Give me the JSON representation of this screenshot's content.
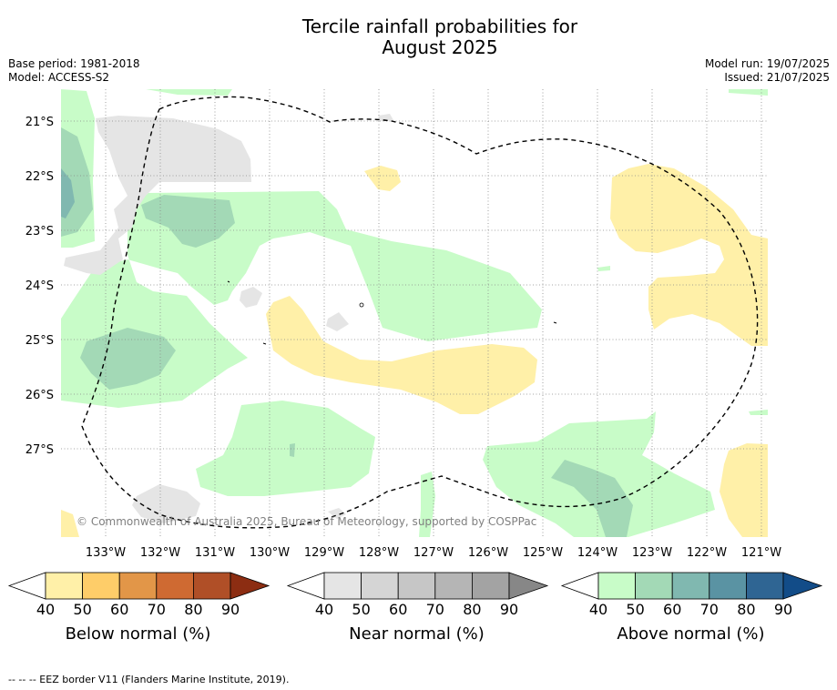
{
  "header": {
    "title_line1": "Tercile rainfall probabilities for",
    "title_line2": "August 2025",
    "base_period": "Base period: 1981-2018",
    "model": "Model: ACCESS-S2",
    "model_run": "Model run: 19/07/2025",
    "issued": "Issued: 21/07/2025"
  },
  "map": {
    "lat_labels": [
      "21°S",
      "22°S",
      "23°S",
      "24°S",
      "25°S",
      "26°S",
      "27°S"
    ],
    "lon_labels": [
      "133°W",
      "132°W",
      "131°W",
      "130°W",
      "129°W",
      "128°W",
      "127°W",
      "126°W",
      "125°W",
      "124°W",
      "123°W",
      "122°W",
      "121°W"
    ],
    "copyright": "© Commonwealth of Australia 2025, Bureau of Meteorology, supported by COSPPac"
  },
  "colorbars": [
    {
      "name": "below",
      "title": "Below normal (%)",
      "ticks": [
        "40",
        "50",
        "60",
        "70",
        "80",
        "90"
      ],
      "colors": [
        "#fff0a8",
        "#fecd69",
        "#e29648",
        "#cf6a32",
        "#b04f27",
        "#8c2d12"
      ]
    },
    {
      "name": "near",
      "title": "Near normal (%)",
      "ticks": [
        "40",
        "50",
        "60",
        "70",
        "80",
        "90"
      ],
      "colors": [
        "#e5e5e5",
        "#d5d5d5",
        "#c6c6c6",
        "#b5b5b5",
        "#a3a3a3",
        "#878787"
      ]
    },
    {
      "name": "above",
      "title": "Above normal (%)",
      "ticks": [
        "40",
        "50",
        "60",
        "70",
        "80",
        "90"
      ],
      "colors": [
        "#c8fcc8",
        "#a3d9b6",
        "#80b8b0",
        "#5a93a3",
        "#2f6593",
        "#124c88"
      ]
    }
  ],
  "footer": "--  --  -- EEZ border V11 (Flanders Marine Institute, 2019)."
}
